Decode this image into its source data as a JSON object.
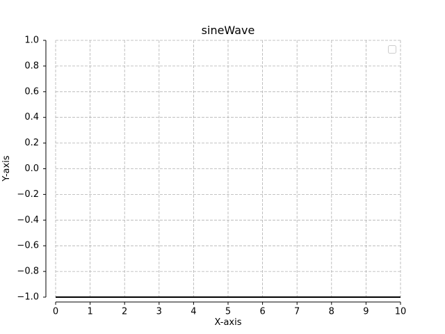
{
  "chart_data": {
    "type": "line",
    "title": "sineWave",
    "xlabel": "X-axis",
    "ylabel": "Y-axis",
    "xlim": [
      0,
      10
    ],
    "ylim": [
      -1.0,
      1.0
    ],
    "xticks": [
      0,
      1,
      2,
      3,
      4,
      5,
      6,
      7,
      8,
      9,
      10
    ],
    "xtick_labels": [
      "0",
      "1",
      "2",
      "3",
      "4",
      "5",
      "6",
      "7",
      "8",
      "9",
      "10"
    ],
    "yticks": [
      -1.0,
      -0.8,
      -0.6,
      -0.4,
      -0.2,
      0.0,
      0.2,
      0.4,
      0.6,
      0.8,
      1.0
    ],
    "ytick_labels": [
      "−1.0",
      "−0.8",
      "−0.6",
      "−0.4",
      "−0.2",
      "0.0",
      "0.2",
      "0.4",
      "0.6",
      "0.8",
      "1.0"
    ],
    "grid": true,
    "grid_style": "dashed",
    "legend": "top-right",
    "legend_entries": [],
    "series": [
      {
        "x": [
          0,
          10
        ],
        "values": [
          -1.0,
          -1.0
        ],
        "color": "#000000"
      }
    ],
    "colors": {
      "grid": "#b0b0b0",
      "axis": "#000000",
      "series": "#000000"
    }
  }
}
